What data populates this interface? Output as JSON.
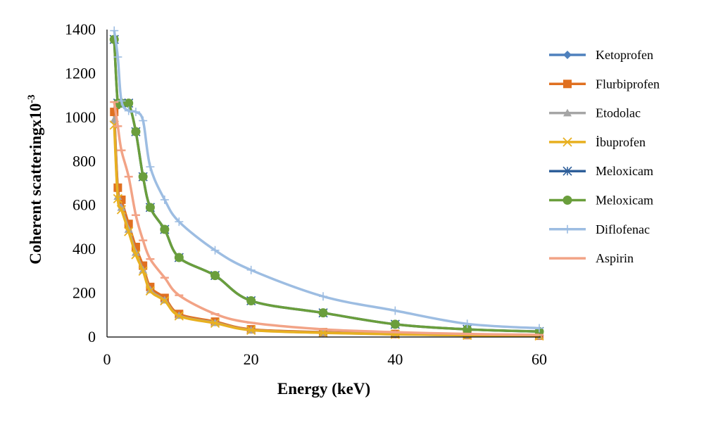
{
  "chart_data": {
    "type": "line",
    "xlabel": "Energy (keV)",
    "ylabel_main": "Coherent scatteringx10",
    "ylabel_sup": "-3",
    "xlim": [
      0,
      60
    ],
    "ylim": [
      0,
      1400
    ],
    "x_ticks": [
      0,
      20,
      40,
      60
    ],
    "y_ticks": [
      0,
      200,
      400,
      600,
      800,
      1000,
      1200,
      1400
    ],
    "grid": false,
    "legend_position": "right",
    "x": [
      1,
      1.5,
      2,
      3,
      4,
      5,
      6,
      8,
      10,
      15,
      20,
      30,
      40,
      50,
      60
    ],
    "series": [
      {
        "name": "Ketoprofen",
        "color": "#4f81bd",
        "marker": "diamond",
        "values": [
          1025,
          670,
          620,
          510,
          405,
          320,
          225,
          175,
          103,
          68,
          34,
          21,
          13,
          9,
          6
        ]
      },
      {
        "name": "Flurbiprofen",
        "color": "#e07020",
        "marker": "square",
        "values": [
          1025,
          680,
          625,
          515,
          410,
          325,
          228,
          178,
          105,
          70,
          35,
          22,
          14,
          9,
          6
        ]
      },
      {
        "name": "Etodolac",
        "color": "#a5a5a5",
        "marker": "triangle",
        "values": [
          990,
          640,
          590,
          490,
          385,
          305,
          215,
          168,
          98,
          65,
          32,
          20,
          12,
          8,
          5
        ]
      },
      {
        "name": "İbuprofen",
        "color": "#e8b020",
        "marker": "x",
        "values": [
          965,
          630,
          580,
          480,
          375,
          300,
          210,
          165,
          96,
          63,
          31,
          19,
          12,
          8,
          5
        ]
      },
      {
        "name": "Meloxicam",
        "color": "#2e5f9a",
        "marker": "asterisk",
        "values": [
          1355,
          1065,
          1065,
          1065,
          935,
          730,
          590,
          490,
          362,
          280,
          165,
          110,
          58,
          35,
          25
        ]
      },
      {
        "name": "Meloxicam",
        "color": "#6a9e3c",
        "marker": "circle",
        "values": [
          1355,
          1065,
          1065,
          1065,
          935,
          730,
          590,
          490,
          362,
          280,
          165,
          110,
          58,
          35,
          25
        ]
      },
      {
        "name": "Diflofenac",
        "color": "#9dbde2",
        "marker": "plus",
        "values": [
          1395,
          1275,
          1075,
          1030,
          1025,
          985,
          775,
          625,
          525,
          395,
          305,
          185,
          120,
          60,
          40
        ]
      },
      {
        "name": "Aspirin",
        "color": "#f2a386",
        "marker": "dash",
        "values": [
          1070,
          960,
          850,
          730,
          555,
          440,
          355,
          270,
          190,
          105,
          65,
          35,
          22,
          14,
          10
        ]
      }
    ]
  }
}
